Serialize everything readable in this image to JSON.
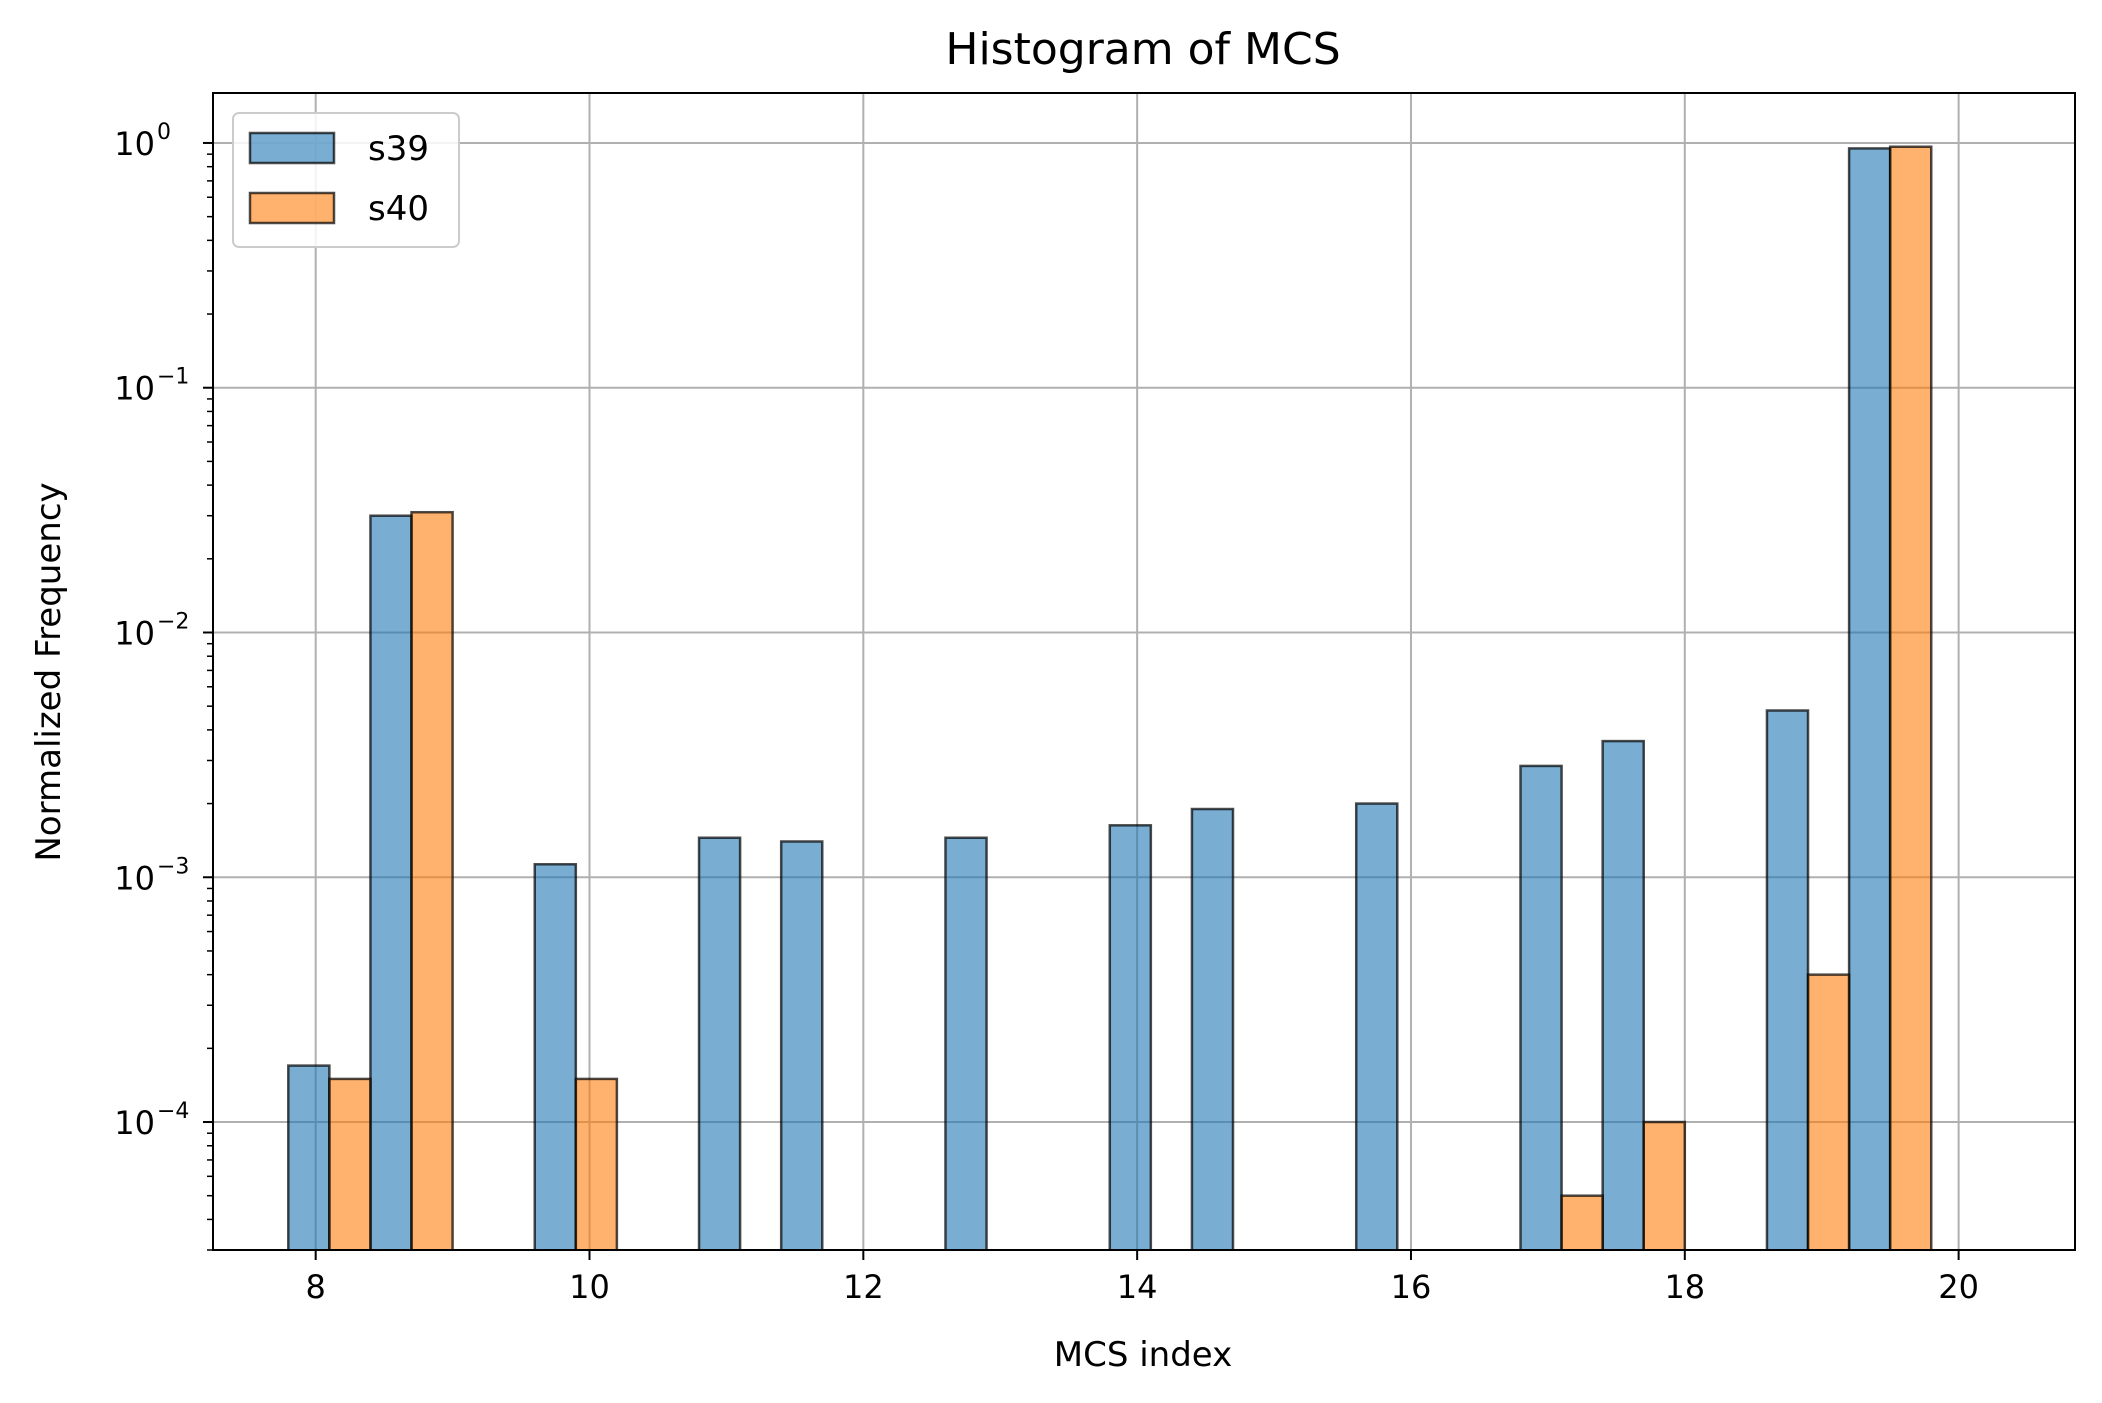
{
  "chart_data": {
    "type": "bar",
    "title": "Histogram of MCS",
    "xlabel": "MCS index",
    "ylabel": "Normalized Frequency",
    "yscale": "log",
    "xlim": [
      7.25,
      20.85
    ],
    "ylim": [
      3e-05,
      1.6
    ],
    "xticks": [
      8,
      10,
      12,
      14,
      16,
      18,
      20
    ],
    "yticks": [
      {
        "value": 0.0001,
        "base": "10",
        "exp": "−4"
      },
      {
        "value": 0.001,
        "base": "10",
        "exp": "−3"
      },
      {
        "value": 0.01,
        "base": "10",
        "exp": "−2"
      },
      {
        "value": 0.1,
        "base": "10",
        "exp": "−1"
      },
      {
        "value": 1,
        "base": "10",
        "exp": "0"
      }
    ],
    "grid": true,
    "legend_position": "top-left",
    "bin_edges": [
      7.8,
      8.1,
      8.4,
      8.7,
      9.0,
      9.3,
      9.6,
      9.9,
      10.2,
      10.5,
      10.8,
      11.1,
      11.4,
      11.7,
      12.0,
      12.3,
      12.6,
      12.9,
      13.2,
      13.5,
      13.8,
      14.1,
      14.4,
      14.7,
      15.0,
      15.3,
      15.6,
      15.9,
      16.2,
      16.5,
      16.8,
      17.1,
      17.4,
      17.7,
      18.0,
      18.3,
      18.6,
      18.9,
      19.2,
      19.5,
      19.8
    ],
    "series": [
      {
        "name": "s39",
        "color": "#1f77b4",
        "bars": [
          {
            "x0": 7.8,
            "x1": 8.1,
            "value": 0.00017
          },
          {
            "x0": 8.4,
            "x1": 8.7,
            "value": 0.03
          },
          {
            "x0": 9.6,
            "x1": 9.9,
            "value": 0.00113
          },
          {
            "x0": 10.8,
            "x1": 11.1,
            "value": 0.00145
          },
          {
            "x0": 11.4,
            "x1": 11.7,
            "value": 0.0014
          },
          {
            "x0": 12.6,
            "x1": 12.9,
            "value": 0.00145
          },
          {
            "x0": 13.8,
            "x1": 14.1,
            "value": 0.00163
          },
          {
            "x0": 14.4,
            "x1": 14.7,
            "value": 0.0019
          },
          {
            "x0": 15.6,
            "x1": 15.9,
            "value": 0.002
          },
          {
            "x0": 16.8,
            "x1": 17.1,
            "value": 0.00285
          },
          {
            "x0": 17.4,
            "x1": 17.7,
            "value": 0.0036
          },
          {
            "x0": 18.6,
            "x1": 18.9,
            "value": 0.0048
          },
          {
            "x0": 19.2,
            "x1": 19.5,
            "value": 0.95
          }
        ]
      },
      {
        "name": "s40",
        "color": "#ff7f0e",
        "bars": [
          {
            "x0": 8.1,
            "x1": 8.4,
            "value": 0.00015
          },
          {
            "x0": 8.7,
            "x1": 9.0,
            "value": 0.031
          },
          {
            "x0": 9.9,
            "x1": 10.2,
            "value": 0.00015
          },
          {
            "x0": 17.1,
            "x1": 17.4,
            "value": 5e-05
          },
          {
            "x0": 17.7,
            "x1": 18.0,
            "value": 0.0001
          },
          {
            "x0": 18.9,
            "x1": 19.2,
            "value": 0.0004
          },
          {
            "x0": 19.5,
            "x1": 19.8,
            "value": 0.965
          }
        ]
      }
    ]
  }
}
